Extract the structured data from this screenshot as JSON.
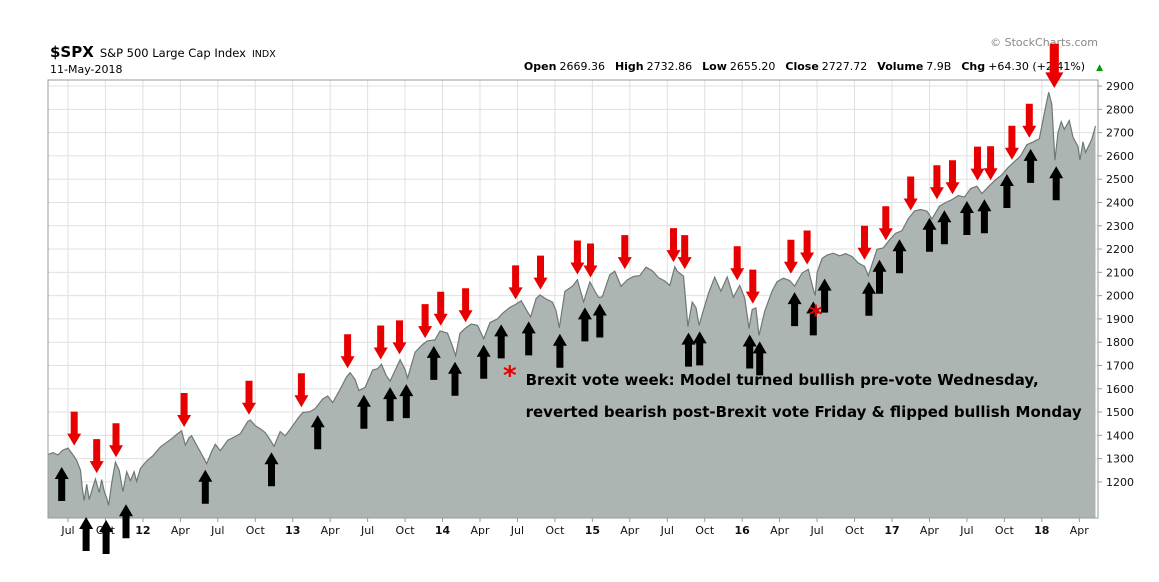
{
  "header": {
    "symbol": "$SPX",
    "name": "S&P 500 Large Cap Index",
    "exchange": "INDX",
    "date": "11-May-2018",
    "watermark": "© StockCharts.com",
    "up_triangle": "▲",
    "quote": {
      "open_label": "Open",
      "open": "2669.36",
      "high_label": "High",
      "high": "2732.86",
      "low_label": "Low",
      "low": "2655.20",
      "close_label": "Close",
      "close": "2727.72",
      "volume_label": "Volume",
      "volume": "7.9B",
      "chg_label": "Chg",
      "chg": "+64.30 (+2.41%)"
    }
  },
  "annotation": {
    "asterisk": "*",
    "line1": "Brexit vote week: Model turned bullish pre-vote Wednesday,",
    "line2": "reverted bearish post-Brexit vote Friday & flipped bullish Monday"
  },
  "chart_data": {
    "type": "area",
    "title": "$SPX S&P 500 Large Cap Index",
    "x_unit": "months since Jul-2011",
    "x_range": [
      -1.6,
      82.5
    ],
    "y_range": [
      1045,
      2926
    ],
    "grid": true,
    "y_ticks": [
      2900,
      2800,
      2700,
      2600,
      2500,
      2400,
      2300,
      2200,
      2100,
      2000,
      1900,
      1800,
      1700,
      1600,
      1500,
      1400,
      1300,
      1200
    ],
    "x_ticks": [
      {
        "m": 0,
        "t": "Jul"
      },
      {
        "m": 3,
        "t": "Oct"
      },
      {
        "m": 6,
        "t": "12",
        "b": true
      },
      {
        "m": 9,
        "t": "Apr"
      },
      {
        "m": 12,
        "t": "Jul"
      },
      {
        "m": 15,
        "t": "Oct"
      },
      {
        "m": 18,
        "t": "13",
        "b": true
      },
      {
        "m": 21,
        "t": "Apr"
      },
      {
        "m": 24,
        "t": "Jul"
      },
      {
        "m": 27,
        "t": "Oct"
      },
      {
        "m": 30,
        "t": "14",
        "b": true
      },
      {
        "m": 33,
        "t": "Apr"
      },
      {
        "m": 36,
        "t": "Jul"
      },
      {
        "m": 39,
        "t": "Oct"
      },
      {
        "m": 42,
        "t": "15",
        "b": true
      },
      {
        "m": 45,
        "t": "Apr"
      },
      {
        "m": 48,
        "t": "Jul"
      },
      {
        "m": 51,
        "t": "Oct"
      },
      {
        "m": 54,
        "t": "16",
        "b": true
      },
      {
        "m": 57,
        "t": "Apr"
      },
      {
        "m": 60,
        "t": "Jul"
      },
      {
        "m": 63,
        "t": "Oct"
      },
      {
        "m": 66,
        "t": "17",
        "b": true
      },
      {
        "m": 69,
        "t": "Apr"
      },
      {
        "m": 72,
        "t": "Jul"
      },
      {
        "m": 75,
        "t": "Oct"
      },
      {
        "m": 78,
        "t": "18",
        "b": true
      },
      {
        "m": 81,
        "t": "Apr"
      }
    ],
    "series": [
      [
        -1.6,
        1318
      ],
      [
        -1.2,
        1326
      ],
      [
        -0.8,
        1316
      ],
      [
        -0.4,
        1337
      ],
      [
        0,
        1345
      ],
      [
        0.4,
        1316
      ],
      [
        0.7,
        1292
      ],
      [
        1.0,
        1250
      ],
      [
        1.15,
        1172
      ],
      [
        1.3,
        1120
      ],
      [
        1.5,
        1190
      ],
      [
        1.7,
        1124
      ],
      [
        2.0,
        1178
      ],
      [
        2.2,
        1212
      ],
      [
        2.5,
        1155
      ],
      [
        2.7,
        1210
      ],
      [
        2.9,
        1160
      ],
      [
        3.1,
        1131
      ],
      [
        3.25,
        1099
      ],
      [
        3.5,
        1195
      ],
      [
        3.8,
        1285
      ],
      [
        4.1,
        1250
      ],
      [
        4.4,
        1158
      ],
      [
        4.7,
        1244
      ],
      [
        5.0,
        1205
      ],
      [
        5.3,
        1244
      ],
      [
        5.5,
        1202
      ],
      [
        5.8,
        1258
      ],
      [
        6.3,
        1290
      ],
      [
        6.8,
        1312
      ],
      [
        7.4,
        1350
      ],
      [
        7.8,
        1366
      ],
      [
        8.4,
        1390
      ],
      [
        8.8,
        1408
      ],
      [
        9.1,
        1419
      ],
      [
        9.4,
        1358
      ],
      [
        9.7,
        1390
      ],
      [
        9.9,
        1398
      ],
      [
        10.3,
        1358
      ],
      [
        10.8,
        1310
      ],
      [
        11.1,
        1278
      ],
      [
        11.5,
        1330
      ],
      [
        11.8,
        1362
      ],
      [
        12.2,
        1334
      ],
      [
        12.8,
        1379
      ],
      [
        13.4,
        1395
      ],
      [
        13.8,
        1407
      ],
      [
        14.4,
        1460
      ],
      [
        14.6,
        1466
      ],
      [
        15.0,
        1441
      ],
      [
        15.4,
        1428
      ],
      [
        15.8,
        1412
      ],
      [
        16.2,
        1380
      ],
      [
        16.5,
        1353
      ],
      [
        17.0,
        1416
      ],
      [
        17.4,
        1398
      ],
      [
        17.8,
        1426
      ],
      [
        18.4,
        1472
      ],
      [
        18.8,
        1498
      ],
      [
        19.4,
        1502
      ],
      [
        19.8,
        1515
      ],
      [
        20.4,
        1556
      ],
      [
        20.8,
        1569
      ],
      [
        21.2,
        1541
      ],
      [
        21.8,
        1598
      ],
      [
        22.3,
        1650
      ],
      [
        22.6,
        1669
      ],
      [
        23.0,
        1640
      ],
      [
        23.3,
        1592
      ],
      [
        23.8,
        1606
      ],
      [
        24.4,
        1680
      ],
      [
        24.8,
        1686
      ],
      [
        25.1,
        1706
      ],
      [
        25.5,
        1656
      ],
      [
        25.8,
        1633
      ],
      [
        26.4,
        1702
      ],
      [
        26.6,
        1725
      ],
      [
        27.0,
        1682
      ],
      [
        27.2,
        1646
      ],
      [
        27.8,
        1757
      ],
      [
        28.4,
        1790
      ],
      [
        28.8,
        1806
      ],
      [
        29.4,
        1810
      ],
      [
        29.8,
        1848
      ],
      [
        30.4,
        1839
      ],
      [
        30.8,
        1783
      ],
      [
        31.05,
        1742
      ],
      [
        31.4,
        1838
      ],
      [
        31.8,
        1859
      ],
      [
        32.3,
        1878
      ],
      [
        32.8,
        1872
      ],
      [
        33.3,
        1815
      ],
      [
        33.8,
        1884
      ],
      [
        34.4,
        1900
      ],
      [
        34.8,
        1924
      ],
      [
        35.4,
        1950
      ],
      [
        35.8,
        1960
      ],
      [
        36.3,
        1978
      ],
      [
        36.8,
        1931
      ],
      [
        37.05,
        1909
      ],
      [
        37.5,
        1988
      ],
      [
        37.8,
        2003
      ],
      [
        38.3,
        1985
      ],
      [
        38.8,
        1972
      ],
      [
        39.1,
        1935
      ],
      [
        39.35,
        1862
      ],
      [
        39.8,
        2018
      ],
      [
        40.4,
        2040
      ],
      [
        40.8,
        2068
      ],
      [
        41.3,
        1973
      ],
      [
        41.8,
        2059
      ],
      [
        42.2,
        2020
      ],
      [
        42.5,
        1992
      ],
      [
        42.8,
        1995
      ],
      [
        43.4,
        2090
      ],
      [
        43.8,
        2105
      ],
      [
        44.3,
        2040
      ],
      [
        44.8,
        2068
      ],
      [
        45.3,
        2082
      ],
      [
        45.8,
        2086
      ],
      [
        46.3,
        2122
      ],
      [
        46.8,
        2107
      ],
      [
        47.3,
        2077
      ],
      [
        47.8,
        2063
      ],
      [
        48.2,
        2044
      ],
      [
        48.6,
        2124
      ],
      [
        48.8,
        2104
      ],
      [
        49.3,
        2084
      ],
      [
        49.65,
        1867
      ],
      [
        50.0,
        1972
      ],
      [
        50.3,
        1948
      ],
      [
        50.55,
        1872
      ],
      [
        50.8,
        1920
      ],
      [
        51.3,
        2010
      ],
      [
        51.8,
        2079
      ],
      [
        52.3,
        2019
      ],
      [
        52.8,
        2080
      ],
      [
        53.3,
        1993
      ],
      [
        53.8,
        2044
      ],
      [
        54.2,
        1990
      ],
      [
        54.55,
        1859
      ],
      [
        54.8,
        1940
      ],
      [
        55.1,
        1947
      ],
      [
        55.35,
        1829
      ],
      [
        55.8,
        1932
      ],
      [
        56.4,
        2020
      ],
      [
        56.8,
        2060
      ],
      [
        57.3,
        2075
      ],
      [
        57.8,
        2065
      ],
      [
        58.2,
        2041
      ],
      [
        58.8,
        2097
      ],
      [
        59.3,
        2113
      ],
      [
        59.65,
        2037
      ],
      [
        59.85,
        2001
      ],
      [
        60.0,
        2099
      ],
      [
        60.4,
        2160
      ],
      [
        60.8,
        2174
      ],
      [
        61.3,
        2182
      ],
      [
        61.8,
        2171
      ],
      [
        62.3,
        2180
      ],
      [
        62.8,
        2168
      ],
      [
        63.3,
        2140
      ],
      [
        63.8,
        2126
      ],
      [
        64.1,
        2085
      ],
      [
        64.8,
        2199
      ],
      [
        65.3,
        2205
      ],
      [
        65.8,
        2239
      ],
      [
        66.3,
        2268
      ],
      [
        66.8,
        2279
      ],
      [
        67.3,
        2330
      ],
      [
        67.8,
        2364
      ],
      [
        68.3,
        2370
      ],
      [
        68.8,
        2363
      ],
      [
        69.2,
        2329
      ],
      [
        69.8,
        2384
      ],
      [
        70.3,
        2400
      ],
      [
        70.8,
        2412
      ],
      [
        71.3,
        2430
      ],
      [
        71.8,
        2423
      ],
      [
        72.3,
        2460
      ],
      [
        72.8,
        2470
      ],
      [
        73.2,
        2438
      ],
      [
        73.8,
        2472
      ],
      [
        74.3,
        2498
      ],
      [
        74.8,
        2519
      ],
      [
        75.3,
        2550
      ],
      [
        75.8,
        2575
      ],
      [
        76.3,
        2600
      ],
      [
        76.8,
        2648
      ],
      [
        77.3,
        2660
      ],
      [
        77.8,
        2674
      ],
      [
        78.3,
        2810
      ],
      [
        78.55,
        2873
      ],
      [
        78.8,
        2822
      ],
      [
        79.05,
        2581
      ],
      [
        79.3,
        2700
      ],
      [
        79.55,
        2747
      ],
      [
        79.8,
        2714
      ],
      [
        80.2,
        2752
      ],
      [
        80.5,
        2680
      ],
      [
        80.9,
        2641
      ],
      [
        81.05,
        2582
      ],
      [
        81.3,
        2660
      ],
      [
        81.5,
        2615
      ],
      [
        81.8,
        2648
      ],
      [
        82.0,
        2672
      ],
      [
        82.3,
        2728
      ]
    ],
    "bearish_signals": [
      [
        0.5,
        1330
      ],
      [
        2.3,
        1212
      ],
      [
        3.85,
        1280
      ],
      [
        9.3,
        1410
      ],
      [
        14.5,
        1463
      ],
      [
        18.7,
        1495
      ],
      [
        22.4,
        1662
      ],
      [
        25.05,
        1700
      ],
      [
        26.55,
        1722
      ],
      [
        28.6,
        1792
      ],
      [
        29.85,
        1845
      ],
      [
        31.85,
        1860
      ],
      [
        35.85,
        1958
      ],
      [
        37.85,
        2000
      ],
      [
        40.8,
        2065
      ],
      [
        41.85,
        2052
      ],
      [
        44.6,
        2088
      ],
      [
        48.5,
        2118
      ],
      [
        49.4,
        2088
      ],
      [
        53.6,
        2040
      ],
      [
        54.85,
        1940
      ],
      [
        57.9,
        2068
      ],
      [
        59.2,
        2108
      ],
      [
        63.8,
        2128
      ],
      [
        65.5,
        2212
      ],
      [
        67.5,
        2340
      ],
      [
        69.6,
        2388
      ],
      [
        70.85,
        2410
      ],
      [
        72.85,
        2468
      ],
      [
        73.9,
        2470
      ],
      [
        75.6,
        2558
      ],
      [
        77.0,
        2652
      ],
      [
        79.0,
        2866,
        1.3
      ]
    ],
    "bullish_signals": [
      [
        -0.5,
        1290
      ],
      [
        1.45,
        1075
      ],
      [
        3.05,
        1062
      ],
      [
        4.65,
        1130
      ],
      [
        11.0,
        1278
      ],
      [
        16.3,
        1353
      ],
      [
        20.0,
        1512
      ],
      [
        23.7,
        1600
      ],
      [
        25.8,
        1633
      ],
      [
        27.1,
        1646
      ],
      [
        29.3,
        1810
      ],
      [
        31.0,
        1742
      ],
      [
        33.3,
        1815
      ],
      [
        34.7,
        1902
      ],
      [
        36.9,
        1915
      ],
      [
        39.4,
        1862
      ],
      [
        41.4,
        1975
      ],
      [
        42.6,
        1992
      ],
      [
        49.7,
        1867
      ],
      [
        50.6,
        1872
      ],
      [
        54.6,
        1859
      ],
      [
        55.4,
        1829
      ],
      [
        58.2,
        2041
      ],
      [
        59.7,
        2001
      ],
      [
        60.6,
        2099
      ],
      [
        64.15,
        2085
      ],
      [
        65.0,
        2180
      ],
      [
        66.6,
        2268
      ],
      [
        69.0,
        2360
      ],
      [
        70.2,
        2392
      ],
      [
        72.0,
        2432
      ],
      [
        73.4,
        2440
      ],
      [
        75.2,
        2548
      ],
      [
        77.1,
        2656
      ],
      [
        79.15,
        2581
      ]
    ],
    "asterisk_marker": {
      "m": 59.9,
      "price": 1880
    },
    "colors": {
      "area_fill": "#adb5b2",
      "area_stroke": "#6e7876",
      "grid": "#e0e0e0",
      "axis_border": "#999999",
      "axis_text": "#111111",
      "bearish": "#e80000",
      "bullish": "#000000",
      "up_day": "#009900"
    }
  }
}
